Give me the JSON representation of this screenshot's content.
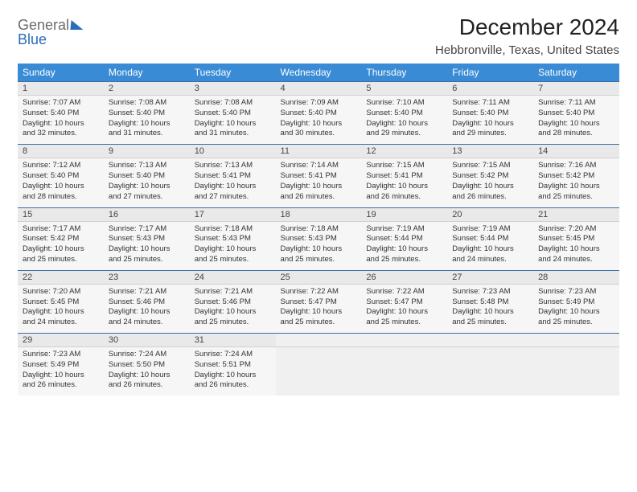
{
  "brand": {
    "part1": "General",
    "part2": "Blue"
  },
  "title": "December 2024",
  "location": "Hebbronville, Texas, United States",
  "colors": {
    "header_bg": "#3a8bd6",
    "row_border": "#3a6fa5",
    "daynum_bg": "#e9e9e9",
    "cell_bg": "#f6f6f6",
    "brand_gray": "#6b6b6b",
    "brand_blue": "#2a6db8"
  },
  "weekdays": [
    "Sunday",
    "Monday",
    "Tuesday",
    "Wednesday",
    "Thursday",
    "Friday",
    "Saturday"
  ],
  "days": [
    {
      "n": 1,
      "sunrise": "7:07 AM",
      "sunset": "5:40 PM",
      "daylight": "10 hours and 32 minutes."
    },
    {
      "n": 2,
      "sunrise": "7:08 AM",
      "sunset": "5:40 PM",
      "daylight": "10 hours and 31 minutes."
    },
    {
      "n": 3,
      "sunrise": "7:08 AM",
      "sunset": "5:40 PM",
      "daylight": "10 hours and 31 minutes."
    },
    {
      "n": 4,
      "sunrise": "7:09 AM",
      "sunset": "5:40 PM",
      "daylight": "10 hours and 30 minutes."
    },
    {
      "n": 5,
      "sunrise": "7:10 AM",
      "sunset": "5:40 PM",
      "daylight": "10 hours and 29 minutes."
    },
    {
      "n": 6,
      "sunrise": "7:11 AM",
      "sunset": "5:40 PM",
      "daylight": "10 hours and 29 minutes."
    },
    {
      "n": 7,
      "sunrise": "7:11 AM",
      "sunset": "5:40 PM",
      "daylight": "10 hours and 28 minutes."
    },
    {
      "n": 8,
      "sunrise": "7:12 AM",
      "sunset": "5:40 PM",
      "daylight": "10 hours and 28 minutes."
    },
    {
      "n": 9,
      "sunrise": "7:13 AM",
      "sunset": "5:40 PM",
      "daylight": "10 hours and 27 minutes."
    },
    {
      "n": 10,
      "sunrise": "7:13 AM",
      "sunset": "5:41 PM",
      "daylight": "10 hours and 27 minutes."
    },
    {
      "n": 11,
      "sunrise": "7:14 AM",
      "sunset": "5:41 PM",
      "daylight": "10 hours and 26 minutes."
    },
    {
      "n": 12,
      "sunrise": "7:15 AM",
      "sunset": "5:41 PM",
      "daylight": "10 hours and 26 minutes."
    },
    {
      "n": 13,
      "sunrise": "7:15 AM",
      "sunset": "5:42 PM",
      "daylight": "10 hours and 26 minutes."
    },
    {
      "n": 14,
      "sunrise": "7:16 AM",
      "sunset": "5:42 PM",
      "daylight": "10 hours and 25 minutes."
    },
    {
      "n": 15,
      "sunrise": "7:17 AM",
      "sunset": "5:42 PM",
      "daylight": "10 hours and 25 minutes."
    },
    {
      "n": 16,
      "sunrise": "7:17 AM",
      "sunset": "5:43 PM",
      "daylight": "10 hours and 25 minutes."
    },
    {
      "n": 17,
      "sunrise": "7:18 AM",
      "sunset": "5:43 PM",
      "daylight": "10 hours and 25 minutes."
    },
    {
      "n": 18,
      "sunrise": "7:18 AM",
      "sunset": "5:43 PM",
      "daylight": "10 hours and 25 minutes."
    },
    {
      "n": 19,
      "sunrise": "7:19 AM",
      "sunset": "5:44 PM",
      "daylight": "10 hours and 25 minutes."
    },
    {
      "n": 20,
      "sunrise": "7:19 AM",
      "sunset": "5:44 PM",
      "daylight": "10 hours and 24 minutes."
    },
    {
      "n": 21,
      "sunrise": "7:20 AM",
      "sunset": "5:45 PM",
      "daylight": "10 hours and 24 minutes."
    },
    {
      "n": 22,
      "sunrise": "7:20 AM",
      "sunset": "5:45 PM",
      "daylight": "10 hours and 24 minutes."
    },
    {
      "n": 23,
      "sunrise": "7:21 AM",
      "sunset": "5:46 PM",
      "daylight": "10 hours and 24 minutes."
    },
    {
      "n": 24,
      "sunrise": "7:21 AM",
      "sunset": "5:46 PM",
      "daylight": "10 hours and 25 minutes."
    },
    {
      "n": 25,
      "sunrise": "7:22 AM",
      "sunset": "5:47 PM",
      "daylight": "10 hours and 25 minutes."
    },
    {
      "n": 26,
      "sunrise": "7:22 AM",
      "sunset": "5:47 PM",
      "daylight": "10 hours and 25 minutes."
    },
    {
      "n": 27,
      "sunrise": "7:23 AM",
      "sunset": "5:48 PM",
      "daylight": "10 hours and 25 minutes."
    },
    {
      "n": 28,
      "sunrise": "7:23 AM",
      "sunset": "5:49 PM",
      "daylight": "10 hours and 25 minutes."
    },
    {
      "n": 29,
      "sunrise": "7:23 AM",
      "sunset": "5:49 PM",
      "daylight": "10 hours and 26 minutes."
    },
    {
      "n": 30,
      "sunrise": "7:24 AM",
      "sunset": "5:50 PM",
      "daylight": "10 hours and 26 minutes."
    },
    {
      "n": 31,
      "sunrise": "7:24 AM",
      "sunset": "5:51 PM",
      "daylight": "10 hours and 26 minutes."
    }
  ],
  "labels": {
    "sunrise_prefix": "Sunrise: ",
    "sunset_prefix": "Sunset: ",
    "daylight_prefix": "Daylight: "
  },
  "layout": {
    "first_weekday_index": 0,
    "rows": 5,
    "cols": 7,
    "trailing_empty": 4
  }
}
